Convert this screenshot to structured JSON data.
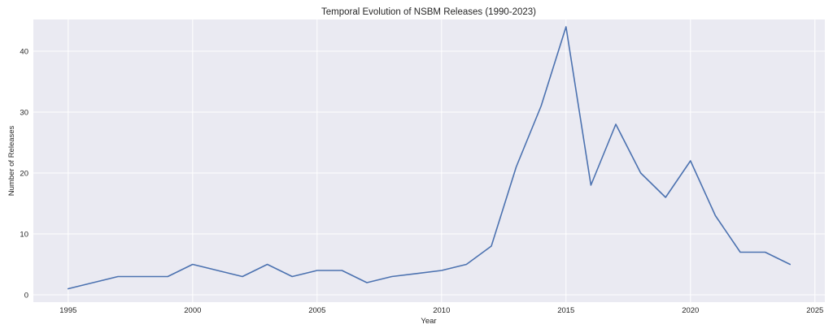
{
  "chart_data": {
    "type": "line",
    "title": "Temporal Evolution of NSBM Releases (1990-2023)",
    "xlabel": "Year",
    "ylabel": "Number of Releases",
    "xlim": [
      1993.6,
      2025.4
    ],
    "ylim": [
      -1.2,
      45.2
    ],
    "x_ticks": [
      1995,
      2000,
      2005,
      2010,
      2015,
      2020,
      2025
    ],
    "y_ticks": [
      0,
      10,
      20,
      30,
      40
    ],
    "grid": true,
    "line_color": "#4c72b0",
    "background_color": "#eaeaf2",
    "series": [
      {
        "x": [
          1995,
          1996,
          1997,
          1998,
          1999,
          2000,
          2001,
          2002,
          2003,
          2004,
          2005,
          2006,
          2007,
          2008,
          2009,
          2010,
          2011,
          2012,
          2013,
          2014,
          2015,
          2016,
          2017,
          2018,
          2019,
          2020,
          2021,
          2022,
          2023,
          2024
        ],
        "values": [
          1,
          2,
          3,
          3,
          3,
          5,
          4,
          3,
          5,
          3,
          4,
          4,
          2,
          3,
          3.5,
          4,
          5,
          8,
          21,
          31,
          44,
          18,
          28,
          20,
          16,
          22,
          13,
          7,
          7,
          5
        ]
      }
    ]
  }
}
